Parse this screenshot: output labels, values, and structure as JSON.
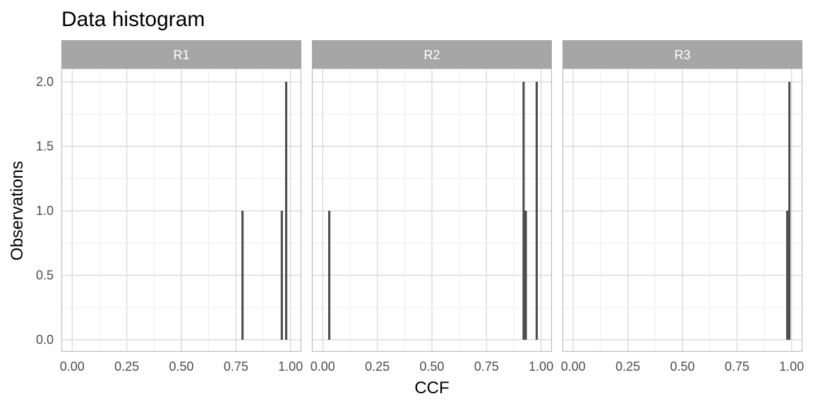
{
  "chart_data": {
    "type": "bar",
    "title": "Data histogram",
    "xlabel": "CCF",
    "ylabel": "Observations",
    "xlim": [
      0,
      1
    ],
    "ylim": [
      0,
      2
    ],
    "x_ticks": [
      "0.00",
      "0.25",
      "0.50",
      "0.75",
      "1.00"
    ],
    "y_ticks": [
      "0.0",
      "0.5",
      "1.0",
      "1.5",
      "2.0"
    ],
    "bin_width": 0.01,
    "grid": true,
    "legend": "none",
    "bar_color": "#4d4d4d",
    "strip_color": "#a6a6a6",
    "panels": [
      {
        "name": "R1",
        "bars": [
          {
            "x": 0.78,
            "count": 1
          },
          {
            "x": 0.96,
            "count": 1
          },
          {
            "x": 0.98,
            "count": 2
          }
        ]
      },
      {
        "name": "R2",
        "bars": [
          {
            "x": 0.03,
            "count": 1
          },
          {
            "x": 0.92,
            "count": 2
          },
          {
            "x": 0.93,
            "count": 1
          },
          {
            "x": 0.98,
            "count": 2
          }
        ]
      },
      {
        "name": "R3",
        "bars": [
          {
            "x": 0.98,
            "count": 1
          },
          {
            "x": 0.99,
            "count": 2
          }
        ]
      }
    ]
  }
}
